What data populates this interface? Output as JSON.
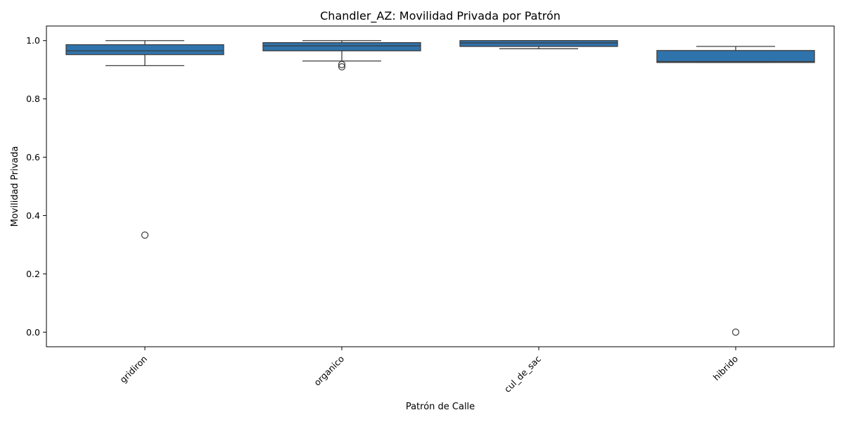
{
  "chart_data": {
    "type": "box",
    "title": "Chandler_AZ: Movilidad Privada por Patrón",
    "xlabel": "Patrón de Calle",
    "ylabel": "Movilidad Privada",
    "categories": [
      "gridiron",
      "organico",
      "cul_de_sac",
      "hibrido"
    ],
    "ylim": [
      -0.05,
      1.05
    ],
    "yticks": [
      0.0,
      0.2,
      0.4,
      0.6,
      0.8,
      1.0
    ],
    "ytick_labels": [
      "0.0",
      "0.2",
      "0.4",
      "0.6",
      "0.8",
      "1.0"
    ],
    "grid": false,
    "box_color": "#2f73ac",
    "line_color": "#3d3d3d",
    "boxes": [
      {
        "category": "gridiron",
        "whisker_low": 0.914,
        "q1": 0.952,
        "median": 0.965,
        "q3": 0.986,
        "whisker_high": 1.0,
        "outliers": [
          0.333
        ]
      },
      {
        "category": "organico",
        "whisker_low": 0.93,
        "q1": 0.965,
        "median": 0.982,
        "q3": 0.993,
        "whisker_high": 1.0,
        "outliers": [
          0.918,
          0.91
        ]
      },
      {
        "category": "cul_de_sac",
        "whisker_low": 0.972,
        "q1": 0.98,
        "median": 0.992,
        "q3": 1.0,
        "whisker_high": 1.0,
        "outliers": []
      },
      {
        "category": "hibrido",
        "whisker_low": 0.925,
        "q1": 0.925,
        "median": 0.928,
        "q3": 0.966,
        "whisker_high": 0.98,
        "outliers": [
          0.0
        ]
      }
    ]
  }
}
